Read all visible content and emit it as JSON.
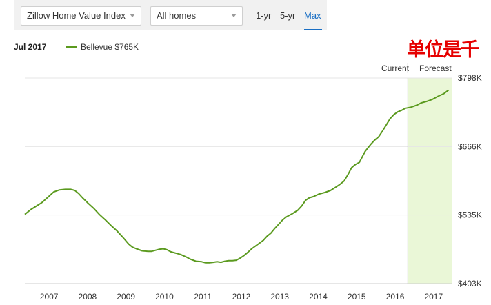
{
  "toolbar": {
    "index_select": "Zillow Home Value Index",
    "homes_select": "All homes",
    "ranges": [
      "1-yr",
      "5-yr",
      "Max"
    ],
    "active_range": "Max"
  },
  "legend": {
    "date": "Jul 2017",
    "series_label": "Bellevue $765K"
  },
  "annotation": "单位是千",
  "zones": {
    "current": "Current",
    "forecast": "Forecast"
  },
  "colors": {
    "series": "#5b9a1f",
    "forecast_fill": "#eaf7d7",
    "active": "#1a6fc4",
    "annotation": "#e60000"
  },
  "chart_data": {
    "type": "line",
    "title": "",
    "xlabel": "",
    "ylabel": "",
    "x_ticks": [
      "2007",
      "2008",
      "2009",
      "2010",
      "2011",
      "2012",
      "2013",
      "2014",
      "2015",
      "2016",
      "2017"
    ],
    "y_ticks": [
      "$798K",
      "$666K",
      "$535K",
      "$403K"
    ],
    "ylim": [
      403,
      798
    ],
    "xlim": [
      2006.7,
      2017.8
    ],
    "forecast_start": 2016.66,
    "grid": true,
    "series": [
      {
        "name": "Bellevue",
        "x": [
          2006.7,
          2006.85,
          2007.0,
          2007.15,
          2007.3,
          2007.45,
          2007.6,
          2007.75,
          2007.9,
          2008.0,
          2008.1,
          2008.2,
          2008.35,
          2008.5,
          2008.65,
          2008.8,
          2008.95,
          2009.1,
          2009.25,
          2009.4,
          2009.5,
          2009.6,
          2009.75,
          2009.9,
          2010.0,
          2010.1,
          2010.2,
          2010.3,
          2010.4,
          2010.5,
          2010.6,
          2010.75,
          2010.9,
          2011.0,
          2011.15,
          2011.3,
          2011.4,
          2011.5,
          2011.6,
          2011.7,
          2011.8,
          2011.9,
          2012.0,
          2012.1,
          2012.2,
          2012.3,
          2012.4,
          2012.5,
          2012.6,
          2012.75,
          2012.9,
          2013.0,
          2013.1,
          2013.2,
          2013.3,
          2013.4,
          2013.5,
          2013.65,
          2013.8,
          2013.9,
          2014.0,
          2014.1,
          2014.2,
          2014.35,
          2014.5,
          2014.65,
          2014.8,
          2014.9,
          2015.0,
          2015.1,
          2015.2,
          2015.3,
          2015.4,
          2015.55,
          2015.7,
          2015.8,
          2015.9,
          2016.0,
          2016.1,
          2016.2,
          2016.3,
          2016.4,
          2016.5,
          2016.6,
          2016.75,
          2016.9,
          2017.0,
          2017.15,
          2017.3,
          2017.45,
          2017.6,
          2017.72
        ],
        "values": [
          536,
          545,
          552,
          559,
          569,
          579,
          583,
          584,
          584,
          582,
          576,
          568,
          557,
          547,
          535,
          525,
          514,
          504,
          492,
          479,
          473,
          470,
          466,
          465,
          465,
          467,
          469,
          470,
          468,
          464,
          462,
          459,
          454,
          450,
          446,
          445,
          443,
          443,
          444,
          445,
          444,
          446,
          447,
          447,
          448,
          452,
          457,
          463,
          470,
          478,
          486,
          494,
          500,
          509,
          517,
          525,
          531,
          537,
          544,
          552,
          563,
          568,
          570,
          575,
          578,
          582,
          589,
          594,
          600,
          612,
          626,
          632,
          636,
          657,
          671,
          679,
          685,
          696,
          708,
          720,
          728,
          733,
          736,
          740,
          742,
          746,
          750,
          753,
          757,
          763,
          768,
          775
        ]
      }
    ]
  }
}
